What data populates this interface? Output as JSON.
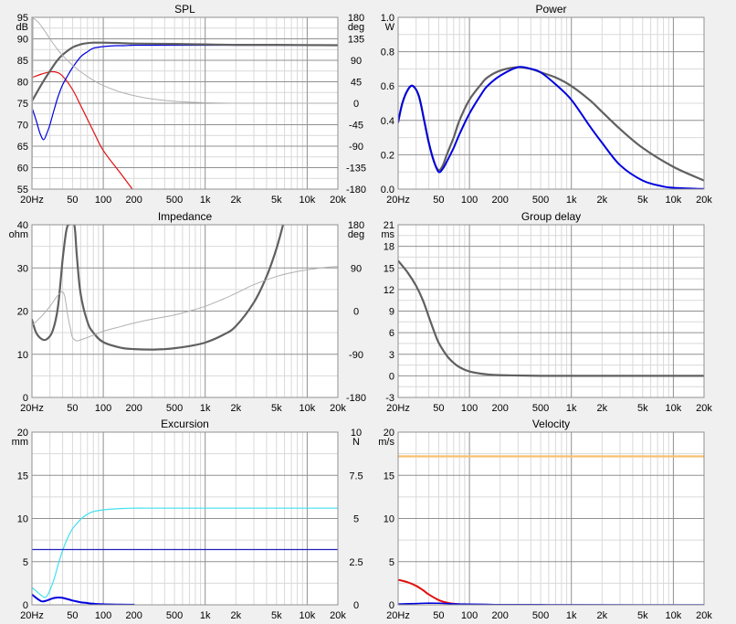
{
  "x_ticks": [
    "20Hz",
    "50",
    "100",
    "200",
    "500",
    "1k",
    "2k",
    "5k",
    "10k",
    "20k"
  ],
  "x_tick_values": [
    20,
    50,
    100,
    200,
    500,
    1000,
    2000,
    5000,
    10000,
    20000
  ],
  "colors": {
    "dark_gray": "#606060",
    "light_gray": "#b0b0b0",
    "blue": "#0000e0",
    "red": "#e01010",
    "cyan": "#40e0f0",
    "orange": "#f8c070"
  },
  "chart_data": [
    {
      "id": "spl",
      "type": "line",
      "title": "SPL",
      "ylabel": "dB",
      "ylabel2": "deg",
      "xlim": [
        20,
        20000
      ],
      "ylim": [
        55,
        95
      ],
      "ylim2": [
        -180,
        180
      ],
      "yticks": [
        55,
        60,
        65,
        70,
        75,
        80,
        85,
        90,
        95
      ],
      "yticks2": [
        -180,
        -135,
        -90,
        -45,
        0,
        45,
        90,
        135,
        180
      ],
      "series": [
        {
          "axis": "left",
          "color": "#e01010",
          "width": 1.2,
          "x": [
            20,
            25,
            30,
            35,
            40,
            50,
            60,
            80,
            100,
            150,
            200
          ],
          "y": [
            81,
            81.8,
            82.3,
            82.2,
            81.3,
            78.2,
            74.5,
            68.5,
            64,
            58.5,
            54.5
          ]
        },
        {
          "axis": "left",
          "color": "#0000e0",
          "width": 1.2,
          "x": [
            20,
            22,
            24,
            26,
            28,
            30,
            33,
            36,
            40,
            45,
            50,
            60,
            70,
            80,
            100,
            130,
            160,
            200,
            300,
            500,
            1000,
            20000
          ],
          "y": [
            74,
            71,
            68,
            66.5,
            68,
            70,
            73.5,
            76.5,
            79.3,
            81.5,
            83.3,
            85.8,
            87,
            87.8,
            88.2,
            88.4,
            88.4,
            88.5,
            88.5,
            88.5,
            88.5,
            88.5
          ]
        },
        {
          "axis": "left",
          "color": "#606060",
          "width": 2.2,
          "x": [
            20,
            25,
            30,
            35,
            40,
            50,
            60,
            70,
            80,
            100,
            150,
            200,
            500,
            1000,
            2000,
            5000,
            20000
          ],
          "y": [
            75.5,
            79.5,
            82.5,
            84.8,
            86.3,
            88,
            88.7,
            89,
            89.1,
            89.1,
            89,
            88.9,
            88.8,
            88.7,
            88.6,
            88.6,
            88.5
          ]
        },
        {
          "axis": "right",
          "color": "#b0b0b0",
          "width": 1,
          "x": [
            20,
            23,
            26,
            30,
            35,
            40,
            50,
            60,
            80,
            100,
            150,
            200,
            300,
            500,
            1000,
            2000,
            5000,
            20000
          ],
          "y": [
            180,
            170,
            155,
            135,
            115,
            100,
            80,
            66,
            48,
            37,
            23,
            16,
            9,
            4,
            1,
            0,
            0,
            0
          ]
        },
        {
          "axis": "right",
          "color": "#b0b0b0",
          "width": 1,
          "x": [
            20,
            20.5
          ],
          "y": [
            -180,
            180
          ]
        }
      ]
    },
    {
      "id": "power",
      "type": "line",
      "title": "Power",
      "ylabel": "W",
      "xlim": [
        20,
        20000
      ],
      "ylim": [
        0,
        1
      ],
      "yticks": [
        "0.0",
        "0.2",
        "0.4",
        "0.6",
        "0.8",
        "1.0"
      ],
      "series": [
        {
          "axis": "left",
          "color": "#606060",
          "width": 2.2,
          "x": [
            20,
            22,
            25,
            28,
            32,
            36,
            40,
            45,
            50,
            55,
            60,
            70,
            80,
            100,
            130,
            150,
            200,
            300,
            400,
            500,
            700,
            1000,
            1500,
            2000,
            3000,
            5000,
            10000,
            20000
          ],
          "y": [
            0.39,
            0.5,
            0.58,
            0.6,
            0.54,
            0.4,
            0.27,
            0.16,
            0.11,
            0.14,
            0.2,
            0.3,
            0.4,
            0.52,
            0.61,
            0.65,
            0.69,
            0.71,
            0.7,
            0.68,
            0.65,
            0.6,
            0.52,
            0.45,
            0.35,
            0.24,
            0.13,
            0.05
          ]
        },
        {
          "axis": "left",
          "color": "#0000e0",
          "width": 2,
          "x": [
            20,
            22,
            25,
            28,
            32,
            36,
            40,
            45,
            50,
            55,
            60,
            70,
            80,
            100,
            130,
            150,
            200,
            300,
            400,
            500,
            700,
            1000,
            1500,
            2000,
            3000,
            5000,
            8000,
            10000,
            15000,
            20000
          ],
          "y": [
            0.39,
            0.5,
            0.58,
            0.6,
            0.54,
            0.4,
            0.27,
            0.16,
            0.1,
            0.12,
            0.16,
            0.24,
            0.32,
            0.44,
            0.55,
            0.6,
            0.66,
            0.71,
            0.7,
            0.68,
            0.61,
            0.52,
            0.37,
            0.27,
            0.14,
            0.05,
            0.015,
            0.008,
            0.003,
            0.001
          ]
        }
      ]
    },
    {
      "id": "impedance",
      "type": "line",
      "title": "Impedance",
      "ylabel": "ohm",
      "ylabel2": "deg",
      "xlim": [
        20,
        20000
      ],
      "ylim": [
        0,
        40
      ],
      "ylim2": [
        -180,
        180
      ],
      "yticks": [
        0,
        10,
        20,
        30,
        40
      ],
      "yticks2": [
        -180,
        -90,
        0,
        90,
        180
      ],
      "series": [
        {
          "axis": "left",
          "color": "#606060",
          "width": 2.2,
          "x": [
            20,
            22,
            25,
            28,
            32,
            36,
            40,
            43,
            45,
            46,
            52,
            55,
            60,
            70,
            80,
            100,
            150,
            200,
            300,
            400,
            500,
            700,
            1000,
            1500,
            2000,
            3000,
            4000,
            5000,
            5800
          ],
          "y": [
            18,
            15,
            13.5,
            13.5,
            15.5,
            21,
            32,
            38,
            40,
            40,
            40,
            33,
            24,
            17.5,
            15,
            12.8,
            11.5,
            11.2,
            11.1,
            11.2,
            11.4,
            11.9,
            12.7,
            14.5,
            16.5,
            22,
            28,
            34.5,
            40
          ]
        },
        {
          "axis": "right",
          "color": "#b0b0b0",
          "width": 1,
          "x": [
            20,
            25,
            30,
            35,
            38,
            40,
            42,
            45,
            48,
            50,
            55,
            60,
            70,
            80,
            100,
            150,
            200,
            300,
            500,
            700,
            1000,
            1500,
            2000,
            3000,
            5000,
            7000,
            10000,
            15000,
            20000
          ],
          "y": [
            -30,
            -10,
            10,
            30,
            38,
            40,
            30,
            -10,
            -40,
            -55,
            -62,
            -60,
            -55,
            -50,
            -42,
            -32,
            -25,
            -17,
            -8,
            0,
            10,
            25,
            37,
            55,
            72,
            80,
            86,
            91,
            93
          ]
        }
      ]
    },
    {
      "id": "group_delay",
      "type": "line",
      "title": "Group delay",
      "ylabel": "ms",
      "xlim": [
        20,
        20000
      ],
      "ylim": [
        -3,
        21
      ],
      "yticks": [
        -3,
        0,
        3,
        6,
        9,
        12,
        15,
        18,
        21
      ],
      "series": [
        {
          "axis": "left",
          "color": "#606060",
          "width": 2.2,
          "x": [
            20,
            25,
            30,
            35,
            40,
            45,
            50,
            60,
            70,
            80,
            100,
            130,
            150,
            200,
            300,
            500,
            1000,
            20000
          ],
          "y": [
            16,
            14.3,
            12.5,
            10.5,
            8.2,
            6.2,
            4.6,
            2.8,
            1.8,
            1.2,
            0.6,
            0.3,
            0.2,
            0.1,
            0.05,
            0,
            0,
            0
          ]
        }
      ]
    },
    {
      "id": "excursion",
      "type": "line",
      "title": "Excursion",
      "ylabel": "mm",
      "ylabel2": "N",
      "xlim": [
        20,
        20000
      ],
      "ylim": [
        0,
        20
      ],
      "ylim2": [
        0,
        10
      ],
      "yticks": [
        0,
        5,
        10,
        15,
        20
      ],
      "yticks2": [
        "0",
        "2.5",
        "5",
        "7.5",
        "10"
      ],
      "series": [
        {
          "axis": "left",
          "color": "#40e0f0",
          "width": 1.2,
          "x": [
            20,
            23,
            26,
            28,
            30,
            33,
            36,
            40,
            45,
            50,
            60,
            70,
            80,
            100,
            150,
            200,
            300,
            500,
            20000
          ],
          "y": [
            2,
            1.4,
            0.9,
            1,
            1.7,
            3,
            4.6,
            6.3,
            7.8,
            8.8,
            9.9,
            10.5,
            10.8,
            11,
            11.15,
            11.2,
            11.2,
            11.2,
            11.2
          ]
        },
        {
          "axis": "left",
          "color": "#2020c0",
          "width": 1.2,
          "x": [
            20,
            20000
          ],
          "y": [
            6.4,
            6.4
          ]
        },
        {
          "axis": "left",
          "color": "#0000e0",
          "width": 2,
          "x": [
            20,
            22,
            25,
            28,
            32,
            36,
            40,
            45,
            50,
            60,
            70,
            80,
            100,
            150,
            200
          ],
          "y": [
            1.2,
            0.8,
            0.4,
            0.5,
            0.75,
            0.85,
            0.8,
            0.65,
            0.5,
            0.3,
            0.2,
            0.13,
            0.06,
            0.02,
            0.01
          ]
        }
      ]
    },
    {
      "id": "velocity",
      "type": "line",
      "title": "Velocity",
      "ylabel": "m/s",
      "xlim": [
        20,
        20000
      ],
      "ylim": [
        0,
        20
      ],
      "yticks": [
        0,
        5,
        10,
        15,
        20
      ],
      "series": [
        {
          "axis": "left",
          "color": "#f8c070",
          "width": 2.2,
          "x": [
            20,
            20000
          ],
          "y": [
            17.2,
            17.2
          ]
        },
        {
          "axis": "left",
          "color": "#e01010",
          "width": 2,
          "x": [
            20,
            25,
            30,
            35,
            40,
            50,
            60,
            70,
            80,
            100,
            130,
            150
          ],
          "y": [
            2.9,
            2.6,
            2.2,
            1.7,
            1.2,
            0.55,
            0.25,
            0.12,
            0.06,
            0.02,
            0.01,
            0
          ]
        },
        {
          "axis": "left",
          "color": "#0000e0",
          "width": 1.5,
          "x": [
            20,
            30,
            40,
            50,
            60,
            80,
            100,
            150,
            200,
            500,
            1000,
            20000
          ],
          "y": [
            0.1,
            0.15,
            0.2,
            0.18,
            0.15,
            0.1,
            0.08,
            0.05,
            0.03,
            0.02,
            0.01,
            0
          ]
        }
      ]
    }
  ]
}
